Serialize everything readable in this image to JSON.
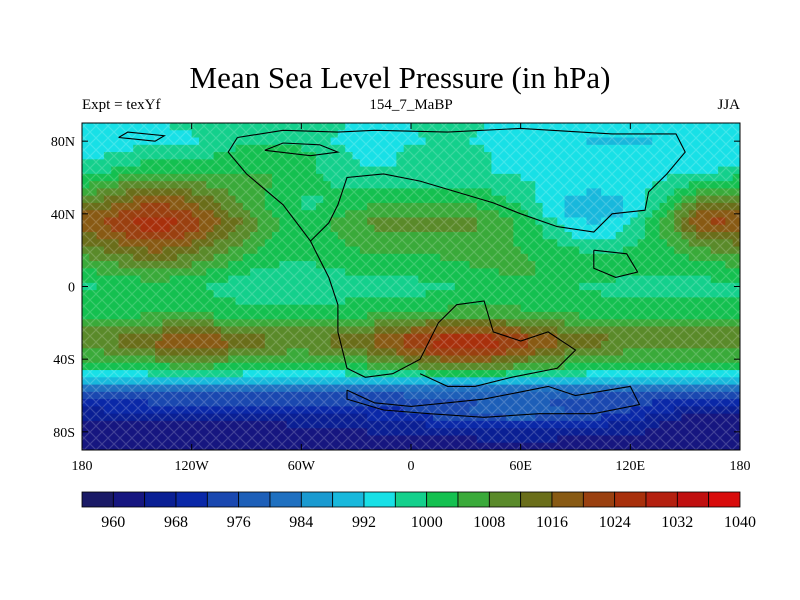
{
  "chart_data": {
    "type": "heatmap",
    "title": "Mean Sea Level Pressure (in hPa)",
    "subtitle_left": "Expt = texYf",
    "subtitle_center": "154_7_MaBP",
    "subtitle_right": "JJA",
    "x_ticks": [
      "180",
      "120W",
      "60W",
      "0",
      "60E",
      "120E",
      "180"
    ],
    "x_tick_values": [
      -180,
      -120,
      -60,
      0,
      60,
      120,
      180
    ],
    "y_ticks": [
      "80N",
      "40N",
      "0",
      "40S",
      "80S"
    ],
    "y_tick_values": [
      80,
      40,
      0,
      -40,
      -80
    ],
    "xlim": [
      -180,
      180
    ],
    "ylim": [
      -90,
      90
    ],
    "colorbar": {
      "levels": [
        960,
        964,
        968,
        972,
        976,
        980,
        984,
        988,
        992,
        996,
        1000,
        1004,
        1008,
        1012,
        1016,
        1020,
        1024,
        1028,
        1032,
        1036,
        1040
      ],
      "labels": [
        "960",
        "968",
        "976",
        "984",
        "992",
        "1000",
        "1008",
        "1016",
        "1024",
        "1032",
        "1040"
      ],
      "colors": [
        "#1a1a66",
        "#161680",
        "#0a1f94",
        "#0a28a8",
        "#1a48b0",
        "#1d5fb8",
        "#1f70c0",
        "#1a9ad0",
        "#18b8dc",
        "#18e0e6",
        "#14d08c",
        "#14c050",
        "#3aaa3a",
        "#5a8a2a",
        "#6a6e1a",
        "#885a14",
        "#9a4010",
        "#a8300c",
        "#b42010",
        "#c01010",
        "#d80c0c"
      ]
    },
    "pressure_regions": [
      {
        "lon": -135,
        "lat": 38,
        "value": 1024
      },
      {
        "lon": 28,
        "lat": -33,
        "value": 1024
      },
      {
        "lon": -75,
        "lat": 5,
        "value": 1000
      },
      {
        "lon": 105,
        "lat": 38,
        "value": 984
      },
      {
        "lon": 160,
        "lat": 38,
        "value": 1012
      },
      {
        "lon": -80,
        "lat": 75,
        "value": 1008
      },
      {
        "lon": 60,
        "lat": -75,
        "value": 976
      },
      {
        "lon": -120,
        "lat": -75,
        "value": 968
      },
      {
        "lon": 150,
        "lat": -70,
        "value": 964
      }
    ]
  }
}
